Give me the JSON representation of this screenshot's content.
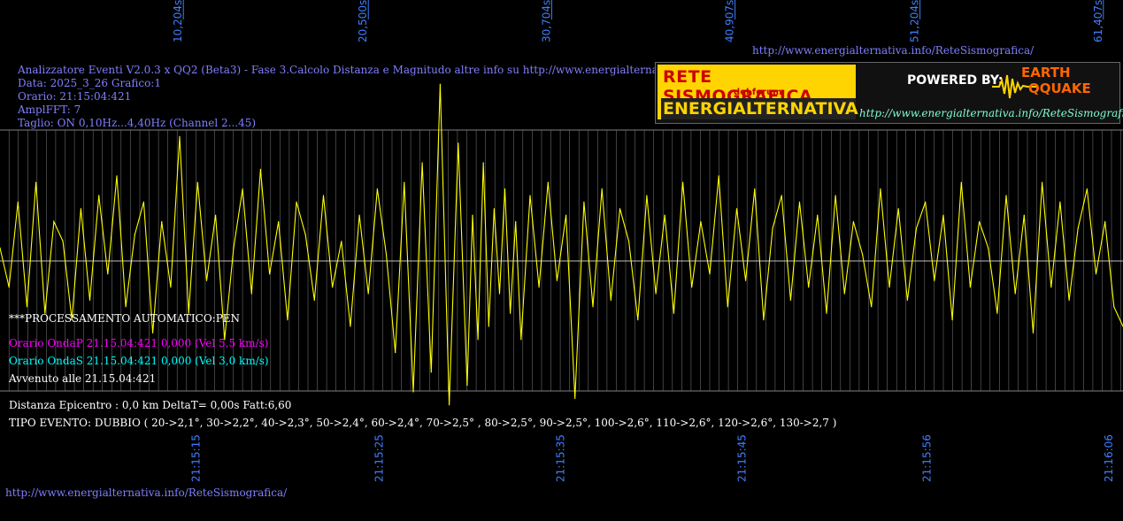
{
  "header": {
    "line1": "Analizzatore Eventi V2.0.3 x QQ2 (Beta3) - Fase 3.Calcolo Distanza e Magnitudo altre info su http://www.energialternativa.info/ReteSism",
    "data": "Data: 2025_3_26 Grafico:1",
    "orario": "Orario: 21:15:04:421",
    "amplfft": "AmplFFT: 7",
    "taglio": "Taglio: ON 0,10Hz...4,40Hz       (Channel 2...45)"
  },
  "site_url_top": "http://www.energialternativa.info/ReteSismografica/",
  "site_url_bottom": "http://www.energialternativa.info/ReteSismografica/",
  "logo": {
    "line1": "RETE SISMOGRAFICA",
    "line2": "del forum",
    "line3": "ENERGIALTERNATIVA",
    "powered": "POWERED BY:",
    "brand1": "EARTH",
    "brand2": "QQUAKE",
    "url": "http://www.energialternativa.info/ReteSismografica"
  },
  "processing": {
    "status": "***PROCESSAMENTO AUTOMATICO:PEN",
    "onda_p": "Orario OndaP 21.15.04:421  0,000 (Vel 5,5 km/s)",
    "onda_s": "Orario OndaS 21.15.04:421  0,000 (Vel 3,0 km/s)",
    "avvenuto": "Avvenuto alle 21.15.04:421",
    "distanza": "Distanza Epicentro : 0,0 km DeltaT= 0,00s  Fatt:6,60",
    "tipo": "TIPO EVENTO: DUBBIO ( 20->2,1°, 30->2,2°, 40->2,3°, 50->2,4°, 60->2,4°, 70->2,5° , 80->2,5°, 90->2,5°, 100->2,6°, 110->2,6°, 120->2,6°, 130->2,7 )"
  },
  "colors": {
    "background": "#000000",
    "trace": "#ffff00",
    "grid": "#808080",
    "tick_text": "#3f7fff",
    "onda_p": "#ff00ff",
    "onda_s": "#00ffff",
    "white": "#ffffff"
  },
  "chart_data": {
    "type": "line",
    "title": "",
    "xlabel": "",
    "ylabel": "",
    "x_range_s": [
      0,
      62.5
    ],
    "ylim": [
      -1,
      1
    ],
    "top_ticks_labels": [
      "10,204s",
      "20,500s",
      "30,704s",
      "40,907s",
      "51,204s",
      "61,407s"
    ],
    "top_ticks_s": [
      10.204,
      20.5,
      30.704,
      40.907,
      51.204,
      61.407
    ],
    "bottom_ticks_labels": [
      "21:15:15",
      "21:15:25",
      "21:15:35",
      "21:15:45",
      "21:15:56",
      "21:16:06"
    ],
    "bottom_ticks_s": [
      10.9,
      21.1,
      31.2,
      41.3,
      51.6,
      61.7
    ],
    "series": [
      {
        "values_s": [
          0,
          0.5,
          1.0,
          1.5,
          2.0,
          2.5,
          3.0,
          3.5,
          4.0,
          4.5,
          5.0,
          5.5,
          6.0,
          6.5,
          7.0,
          7.5,
          8.0,
          8.5,
          9.0,
          9.5,
          10.0,
          10.5,
          11.0,
          11.5,
          12.0,
          12.5,
          13.0,
          13.5,
          14.0,
          14.5,
          15.0,
          15.5,
          16.0,
          16.5,
          17.0,
          17.5,
          18.0,
          18.5,
          19.0,
          19.5,
          20.0,
          20.5,
          21.0,
          21.5,
          22.0,
          22.5,
          23.0,
          23.5,
          24.0,
          24.5,
          25.0,
          25.5,
          26.0,
          26.3,
          26.6,
          26.9,
          27.2,
          27.5,
          27.8,
          28.1,
          28.4,
          28.7,
          29.0,
          29.5,
          30.0,
          30.5,
          31.0,
          31.5,
          32.0,
          32.5,
          33.0,
          33.5,
          34.0,
          34.5,
          35.0,
          35.5,
          36.0,
          36.5,
          37.0,
          37.5,
          38.0,
          38.5,
          39.0,
          39.5,
          40.0,
          40.5,
          41.0,
          41.5,
          42.0,
          42.5,
          43.0,
          43.5,
          44.0,
          44.5,
          45.0,
          45.5,
          46.0,
          46.5,
          47.0,
          47.5,
          48.0,
          48.5,
          49.0,
          49.5,
          50.0,
          50.5,
          51.0,
          51.5,
          52.0,
          52.5,
          53.0,
          53.5,
          54.0,
          54.5,
          55.0,
          55.5,
          56.0,
          56.5,
          57.0,
          57.5,
          58.0,
          58.5,
          59.0,
          59.5,
          60.0,
          60.5,
          61.0,
          61.5,
          62.0,
          62.5
        ],
        "values": [
          0.1,
          -0.2,
          0.45,
          -0.35,
          0.6,
          -0.4,
          0.3,
          0.15,
          -0.45,
          0.4,
          -0.3,
          0.5,
          -0.1,
          0.65,
          -0.35,
          0.2,
          0.45,
          -0.55,
          0.3,
          -0.2,
          0.95,
          -0.4,
          0.6,
          -0.15,
          0.35,
          -0.6,
          0.1,
          0.55,
          -0.25,
          0.7,
          -0.1,
          0.3,
          -0.45,
          0.45,
          0.2,
          -0.3,
          0.5,
          -0.2,
          0.15,
          -0.5,
          0.35,
          -0.25,
          0.55,
          0.05,
          -0.7,
          0.6,
          -1.0,
          0.75,
          -0.85,
          1.35,
          -1.1,
          0.9,
          -0.95,
          0.35,
          -0.6,
          0.75,
          -0.5,
          0.4,
          -0.25,
          0.55,
          -0.4,
          0.3,
          -0.6,
          0.5,
          -0.2,
          0.6,
          -0.15,
          0.35,
          -1.05,
          0.45,
          -0.35,
          0.55,
          -0.3,
          0.4,
          0.15,
          -0.45,
          0.5,
          -0.25,
          0.35,
          -0.4,
          0.6,
          -0.2,
          0.3,
          -0.1,
          0.65,
          -0.35,
          0.4,
          -0.15,
          0.55,
          -0.45,
          0.25,
          0.5,
          -0.3,
          0.45,
          -0.2,
          0.35,
          -0.4,
          0.5,
          -0.25,
          0.3,
          0.05,
          -0.35,
          0.55,
          -0.2,
          0.4,
          -0.3,
          0.25,
          0.45,
          -0.15,
          0.35,
          -0.45,
          0.6,
          -0.2,
          0.3,
          0.1,
          -0.4,
          0.5,
          -0.25,
          0.35,
          -0.55,
          0.6,
          -0.2,
          0.45,
          -0.3,
          0.25,
          0.55,
          -0.1,
          0.3,
          -0.35,
          -0.5
        ]
      }
    ]
  }
}
